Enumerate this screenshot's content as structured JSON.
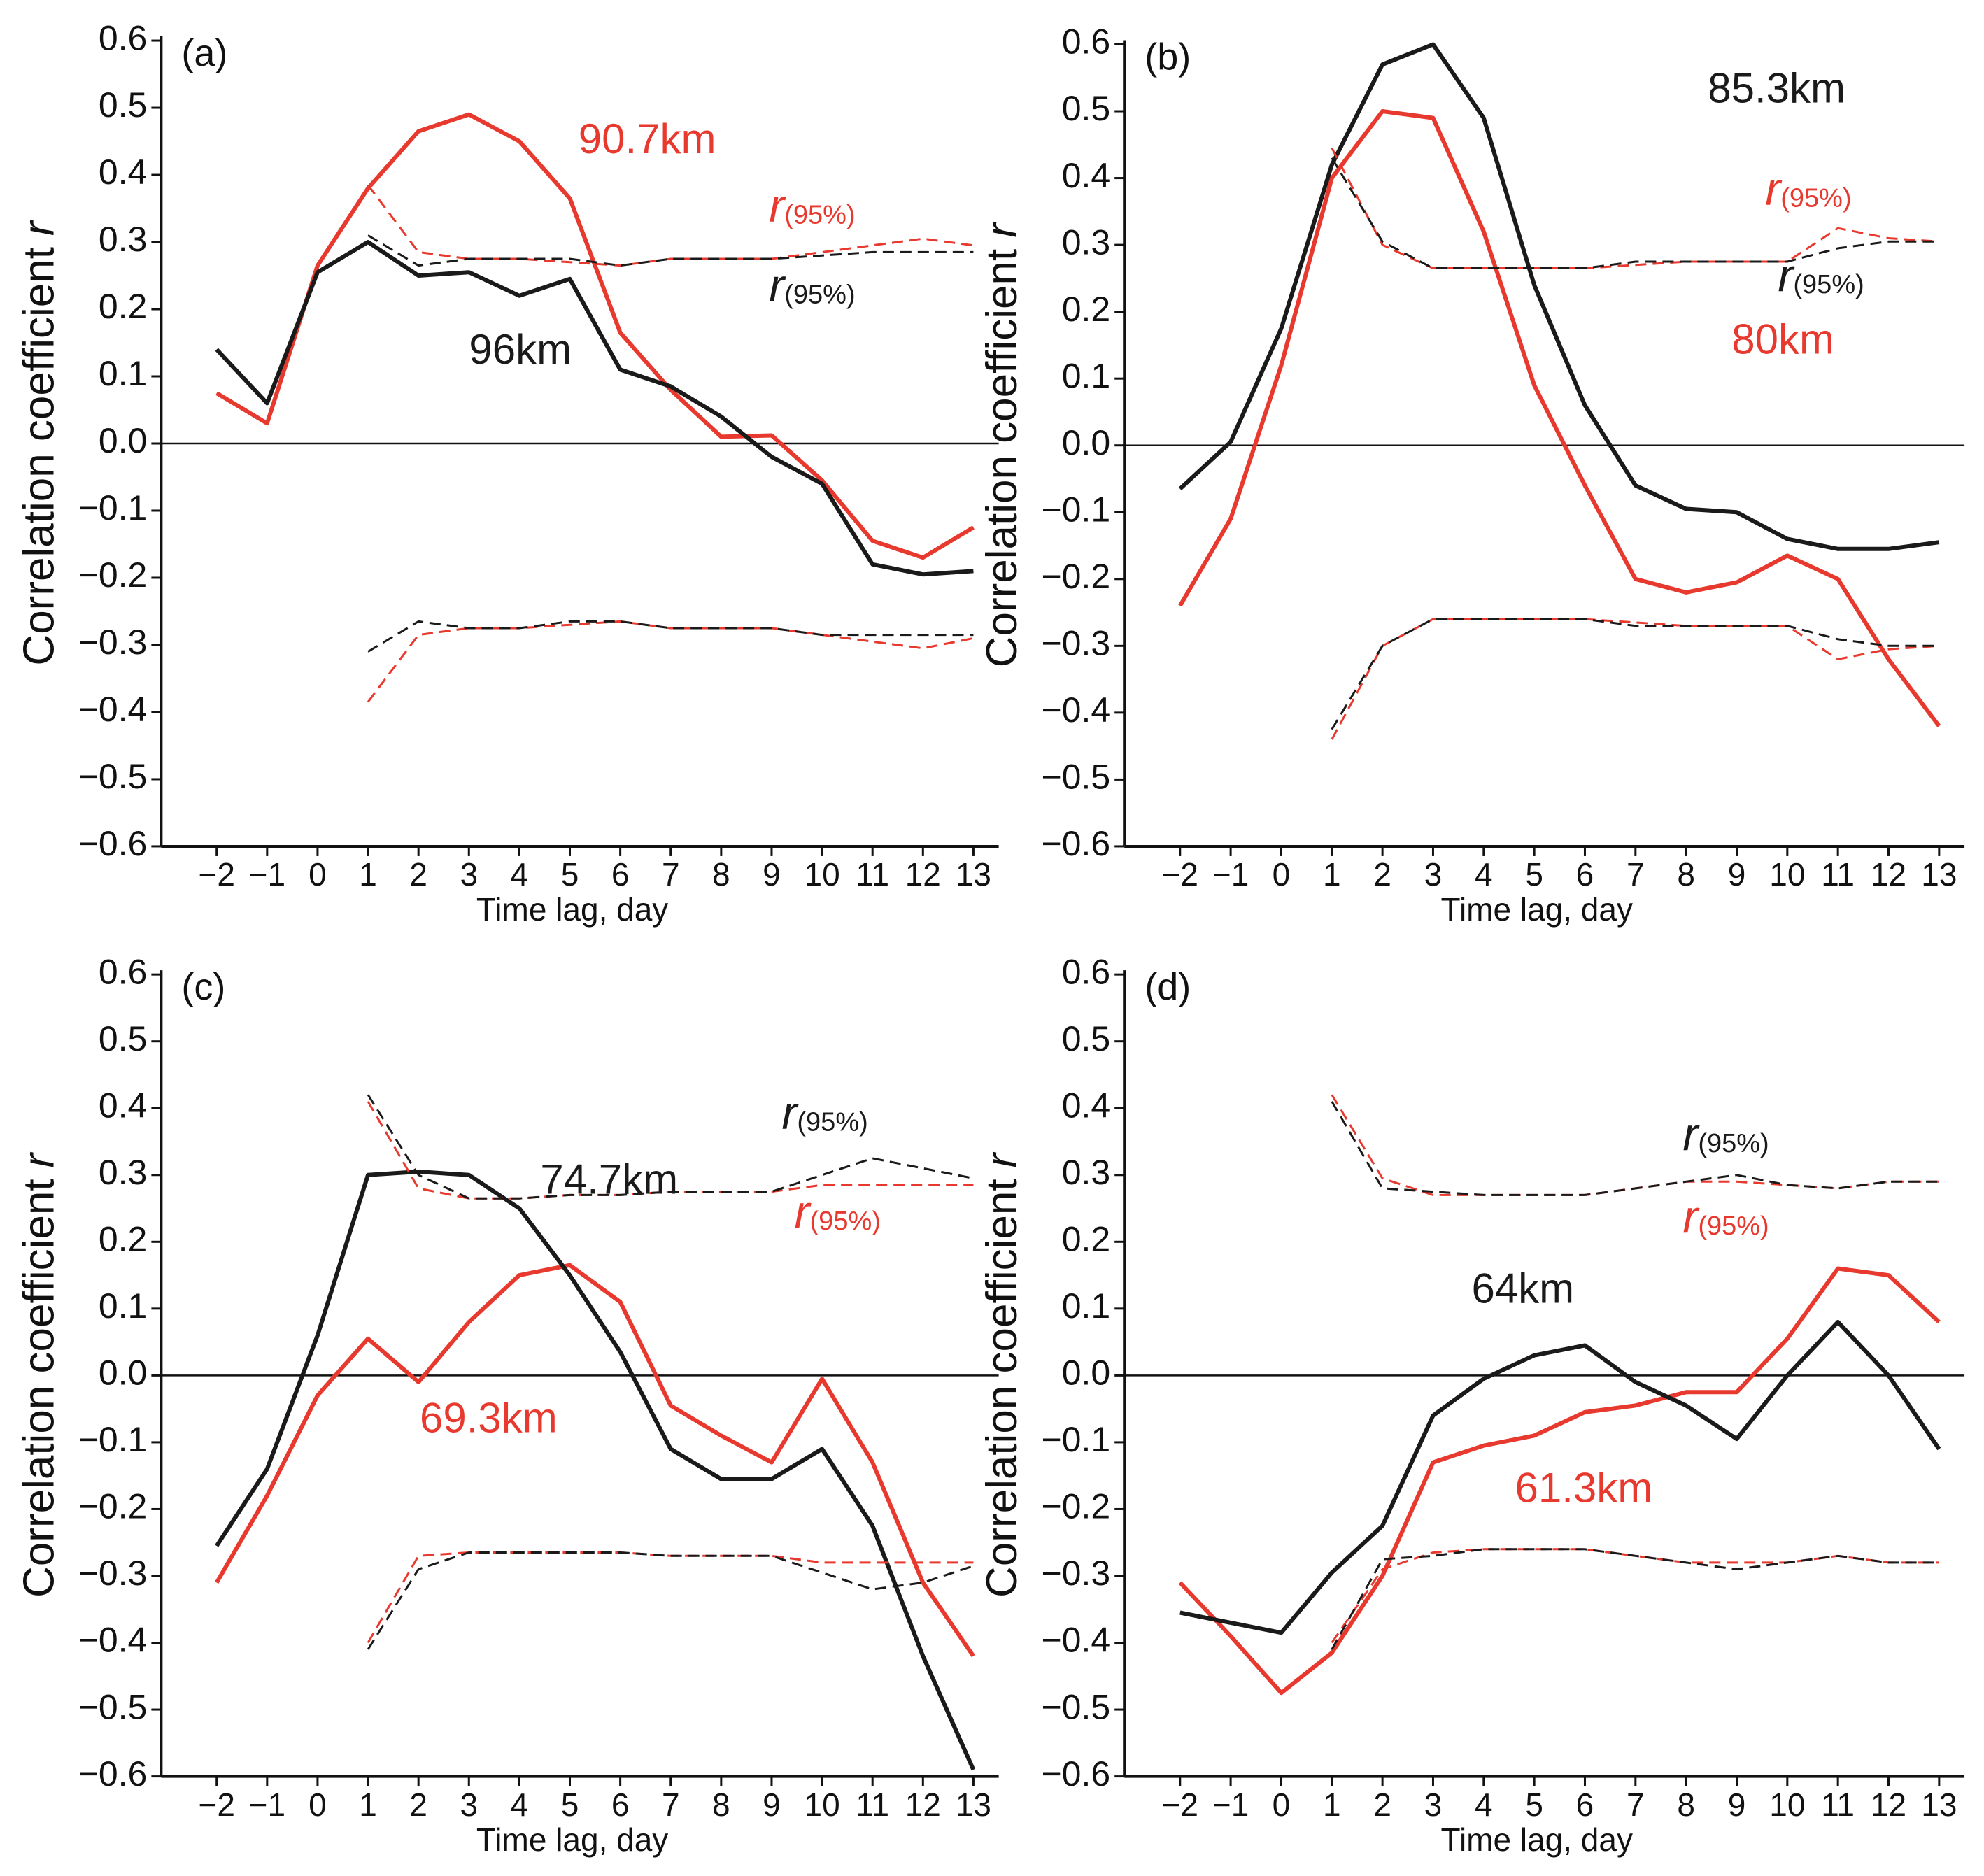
{
  "chart_data": [
    {
      "type": "line",
      "title": "(a)",
      "xlabel": "Time lag, day",
      "ylabel": "Correlation coefficient",
      "ylabel_var": "r",
      "x": [
        -2,
        -1,
        0,
        1,
        2,
        3,
        4,
        5,
        6,
        7,
        8,
        9,
        10,
        11,
        12,
        13
      ],
      "xlim": [
        -3.1,
        13.2
      ],
      "xticks": [
        {
          "value": -2,
          "label": "−2"
        },
        {
          "value": -1,
          "label": "−1"
        },
        0,
        1,
        2,
        3,
        4,
        5,
        6,
        7,
        8,
        9,
        10,
        11,
        12,
        13
      ],
      "ylim": [
        -0.6,
        0.6
      ],
      "yticks": [
        {
          "value": -0.6,
          "label": "−0.6"
        },
        {
          "value": -0.5,
          "label": "−0.5"
        },
        {
          "value": -0.4,
          "label": "−0.4"
        },
        {
          "value": -0.3,
          "label": "−0.3"
        },
        {
          "value": -0.2,
          "label": "−0.2"
        },
        {
          "value": -0.1,
          "label": "−0.1"
        },
        {
          "value": 0,
          "label": "0.0"
        },
        0.1,
        0.2,
        0.3,
        0.4,
        0.5,
        0.6
      ],
      "series": [
        {
          "name": "90.7km",
          "color": "#e8392f",
          "values": [
            0.075,
            0.03,
            0.265,
            0.38,
            0.465,
            0.49,
            0.45,
            0.365,
            0.165,
            0.08,
            0.01,
            0.012,
            -0.055,
            -0.145,
            -0.17,
            -0.125
          ]
        },
        {
          "name": "96km",
          "color": "#1a1a1a",
          "values": [
            0.14,
            0.06,
            0.255,
            0.3,
            0.25,
            0.255,
            0.22,
            0.245,
            0.11,
            0.085,
            0.04,
            -0.02,
            -0.06,
            -0.18,
            -0.195,
            -0.19
          ]
        },
        {
          "color": "#e8392f",
          "dashed": true,
          "values": [
            null,
            null,
            null,
            0.385,
            0.285,
            0.275,
            0.275,
            0.27,
            0.265,
            0.275,
            0.275,
            0.275,
            0.285,
            0.295,
            0.305,
            0.295
          ]
        },
        {
          "color": "#1a1a1a",
          "dashed": true,
          "values": [
            null,
            null,
            null,
            0.31,
            0.265,
            0.275,
            0.275,
            0.275,
            0.265,
            0.275,
            0.275,
            0.275,
            0.28,
            0.285,
            0.285,
            0.285
          ]
        },
        {
          "color": "#e8392f",
          "dashed": true,
          "values": [
            null,
            null,
            null,
            -0.385,
            -0.285,
            -0.275,
            -0.275,
            -0.27,
            -0.265,
            -0.275,
            -0.275,
            -0.275,
            -0.285,
            -0.295,
            -0.305,
            -0.29
          ]
        },
        {
          "color": "#1a1a1a",
          "dashed": true,
          "values": [
            null,
            null,
            null,
            -0.31,
            -0.265,
            -0.275,
            -0.275,
            -0.265,
            -0.265,
            -0.275,
            -0.275,
            -0.275,
            -0.285,
            -0.285,
            -0.285,
            -0.285
          ]
        }
      ],
      "annotations": [
        {
          "text": "r",
          "subscript": "(95%)",
          "color": "#e8392f"
        },
        {
          "text": "r",
          "subscript": "(95%)",
          "color": "#1a1a1a"
        }
      ]
    },
    {
      "type": "line",
      "title": "(b)",
      "xlabel": "Time lag, day",
      "ylabel": "Correlation coefficient",
      "ylabel_var": "r",
      "x": [
        -2,
        -1,
        0,
        1,
        2,
        3,
        4,
        5,
        6,
        7,
        8,
        9,
        10,
        11,
        12,
        13
      ],
      "xlim": [
        -3.1,
        13.2
      ],
      "xticks": [
        {
          "value": -2,
          "label": "−2"
        },
        {
          "value": -1,
          "label": "−1"
        },
        0,
        1,
        2,
        3,
        4,
        5,
        6,
        7,
        8,
        9,
        10,
        11,
        12,
        13
      ],
      "ylim": [
        -0.6,
        0.6
      ],
      "yticks": [
        {
          "value": -0.6,
          "label": "−0.6"
        },
        {
          "value": -0.5,
          "label": "−0.5"
        },
        {
          "value": -0.4,
          "label": "−0.4"
        },
        {
          "value": -0.3,
          "label": "−0.3"
        },
        {
          "value": -0.2,
          "label": "−0.2"
        },
        {
          "value": -0.1,
          "label": "−0.1"
        },
        {
          "value": 0,
          "label": "0.0"
        },
        0.1,
        0.2,
        0.3,
        0.4,
        0.5,
        0.6
      ],
      "series": [
        {
          "name": "80km",
          "color": "#e8392f",
          "values": [
            -0.24,
            -0.11,
            0.12,
            0.4,
            0.5,
            0.49,
            0.32,
            0.09,
            -0.06,
            -0.2,
            -0.22,
            -0.205,
            -0.165,
            -0.2,
            -0.32,
            -0.42
          ]
        },
        {
          "name": "85.3km",
          "color": "#1a1a1a",
          "values": [
            -0.065,
            0.005,
            0.175,
            0.42,
            0.57,
            0.6,
            0.49,
            0.24,
            0.06,
            -0.06,
            -0.095,
            -0.1,
            -0.14,
            -0.155,
            -0.155,
            -0.145
          ]
        },
        {
          "color": "#e8392f",
          "dashed": true,
          "values": [
            null,
            null,
            null,
            0.445,
            0.3,
            0.265,
            0.265,
            0.265,
            0.265,
            0.27,
            0.275,
            0.275,
            0.275,
            0.325,
            0.31,
            0.305
          ]
        },
        {
          "color": "#1a1a1a",
          "dashed": true,
          "values": [
            null,
            null,
            null,
            0.43,
            0.305,
            0.265,
            0.265,
            0.265,
            0.265,
            0.275,
            0.275,
            0.275,
            0.275,
            0.295,
            0.305,
            0.305
          ]
        },
        {
          "color": "#e8392f",
          "dashed": true,
          "values": [
            null,
            null,
            null,
            -0.44,
            -0.3,
            -0.26,
            -0.26,
            -0.26,
            -0.26,
            -0.265,
            -0.27,
            -0.27,
            -0.27,
            -0.32,
            -0.305,
            -0.3
          ]
        },
        {
          "color": "#1a1a1a",
          "dashed": true,
          "values": [
            null,
            null,
            null,
            -0.425,
            -0.3,
            -0.26,
            -0.26,
            -0.26,
            -0.26,
            -0.27,
            -0.27,
            -0.27,
            -0.27,
            -0.29,
            -0.3,
            -0.3
          ]
        }
      ],
      "annotations": [
        {
          "text": "r",
          "subscript": "(95%)",
          "color": "#e8392f"
        },
        {
          "text": "r",
          "subscript": "(95%)",
          "color": "#1a1a1a"
        }
      ]
    },
    {
      "type": "line",
      "title": "(c)",
      "xlabel": "Time lag, day",
      "ylabel": "Correlation coefficient",
      "ylabel_var": "r",
      "x": [
        -2,
        -1,
        0,
        1,
        2,
        3,
        4,
        5,
        6,
        7,
        8,
        9,
        10,
        11,
        12,
        13
      ],
      "xlim": [
        -3.1,
        13.2
      ],
      "xticks": [
        {
          "value": -2,
          "label": "−2"
        },
        {
          "value": -1,
          "label": "−1"
        },
        0,
        1,
        2,
        3,
        4,
        5,
        6,
        7,
        8,
        9,
        10,
        11,
        12,
        13
      ],
      "ylim": [
        -0.6,
        0.6
      ],
      "yticks": [
        {
          "value": -0.6,
          "label": "−0.6"
        },
        {
          "value": -0.5,
          "label": "−0.5"
        },
        {
          "value": -0.4,
          "label": "−0.4"
        },
        {
          "value": -0.3,
          "label": "−0.3"
        },
        {
          "value": -0.2,
          "label": "−0.2"
        },
        {
          "value": -0.1,
          "label": "−0.1"
        },
        {
          "value": 0,
          "label": "0.0"
        },
        0.1,
        0.2,
        0.3,
        0.4,
        0.5,
        0.6
      ],
      "series": [
        {
          "name": "69.3km",
          "color": "#e8392f",
          "values": [
            -0.31,
            -0.18,
            -0.03,
            0.055,
            -0.01,
            0.08,
            0.15,
            0.165,
            0.11,
            -0.045,
            -0.09,
            -0.13,
            -0.005,
            -0.13,
            -0.31,
            -0.42
          ]
        },
        {
          "name": "74.7km",
          "color": "#1a1a1a",
          "values": [
            -0.255,
            -0.14,
            0.06,
            0.3,
            0.305,
            0.3,
            0.25,
            0.15,
            0.035,
            -0.11,
            -0.155,
            -0.155,
            -0.11,
            -0.225,
            -0.42,
            -0.59
          ]
        },
        {
          "color": "#e8392f",
          "dashed": true,
          "values": [
            null,
            null,
            null,
            0.41,
            0.28,
            0.265,
            0.265,
            0.27,
            0.27,
            0.275,
            0.275,
            0.275,
            0.285,
            0.285,
            0.285,
            0.285
          ]
        },
        {
          "color": "#1a1a1a",
          "dashed": true,
          "values": [
            null,
            null,
            null,
            0.42,
            0.3,
            0.265,
            0.265,
            0.27,
            0.27,
            0.275,
            0.275,
            0.275,
            0.3,
            0.325,
            0.31,
            0.295
          ]
        },
        {
          "color": "#e8392f",
          "dashed": true,
          "values": [
            null,
            null,
            null,
            -0.4,
            -0.27,
            -0.265,
            -0.265,
            -0.265,
            -0.265,
            -0.27,
            -0.27,
            -0.27,
            -0.28,
            -0.28,
            -0.28,
            -0.28
          ]
        },
        {
          "color": "#1a1a1a",
          "dashed": true,
          "values": [
            null,
            null,
            null,
            -0.41,
            -0.29,
            -0.265,
            -0.265,
            -0.265,
            -0.265,
            -0.27,
            -0.27,
            -0.27,
            -0.295,
            -0.32,
            -0.31,
            -0.285
          ]
        }
      ],
      "annotations": [
        {
          "text": "r",
          "subscript": "(95%)",
          "color": "#e8392f"
        },
        {
          "text": "r",
          "subscript": "(95%)",
          "color": "#1a1a1a"
        }
      ]
    },
    {
      "type": "line",
      "title": "(d)",
      "xlabel": "Time lag, day",
      "ylabel": "Correlation coefficient",
      "ylabel_var": "r",
      "x": [
        -2,
        -1,
        0,
        1,
        2,
        3,
        4,
        5,
        6,
        7,
        8,
        9,
        10,
        11,
        12,
        13
      ],
      "xlim": [
        -3.1,
        13.2
      ],
      "xticks": [
        {
          "value": -2,
          "label": "−2"
        },
        {
          "value": -1,
          "label": "−1"
        },
        0,
        1,
        2,
        3,
        4,
        5,
        6,
        7,
        8,
        9,
        10,
        11,
        12,
        13
      ],
      "ylim": [
        -0.6,
        0.6
      ],
      "yticks": [
        {
          "value": -0.6,
          "label": "−0.6"
        },
        {
          "value": -0.5,
          "label": "−0.5"
        },
        {
          "value": -0.4,
          "label": "−0.4"
        },
        {
          "value": -0.3,
          "label": "−0.3"
        },
        {
          "value": -0.2,
          "label": "−0.2"
        },
        {
          "value": -0.1,
          "label": "−0.1"
        },
        {
          "value": 0,
          "label": "0.0"
        },
        0.1,
        0.2,
        0.3,
        0.4,
        0.5,
        0.6
      ],
      "series": [
        {
          "name": "61.3km",
          "color": "#e8392f",
          "values": [
            -0.31,
            -0.39,
            -0.475,
            -0.415,
            -0.3,
            -0.13,
            -0.105,
            -0.09,
            -0.055,
            -0.045,
            -0.025,
            -0.025,
            0.055,
            0.16,
            0.15,
            0.08
          ]
        },
        {
          "name": "64km",
          "color": "#1a1a1a",
          "values": [
            -0.355,
            -0.37,
            -0.385,
            -0.295,
            -0.225,
            -0.06,
            -0.005,
            0.03,
            0.045,
            -0.01,
            -0.045,
            -0.095,
            0.0,
            0.08,
            0.0,
            -0.11
          ]
        },
        {
          "color": "#e8392f",
          "dashed": true,
          "values": [
            null,
            null,
            null,
            0.42,
            0.295,
            0.27,
            0.27,
            0.27,
            0.27,
            0.28,
            0.29,
            0.29,
            0.285,
            0.28,
            0.29,
            0.29
          ]
        },
        {
          "color": "#1a1a1a",
          "dashed": true,
          "values": [
            null,
            null,
            null,
            0.41,
            0.28,
            0.275,
            0.27,
            0.27,
            0.27,
            0.28,
            0.29,
            0.3,
            0.285,
            0.28,
            0.29,
            0.29
          ]
        },
        {
          "color": "#e8392f",
          "dashed": true,
          "values": [
            null,
            null,
            null,
            -0.4,
            -0.29,
            -0.265,
            -0.26,
            -0.26,
            -0.26,
            -0.27,
            -0.28,
            -0.28,
            -0.28,
            -0.27,
            -0.28,
            -0.28
          ]
        },
        {
          "color": "#1a1a1a",
          "dashed": true,
          "values": [
            null,
            null,
            null,
            -0.41,
            -0.275,
            -0.27,
            -0.26,
            -0.26,
            -0.26,
            -0.27,
            -0.28,
            -0.29,
            -0.28,
            -0.27,
            -0.28,
            -0.28
          ]
        }
      ],
      "annotations": [
        {
          "text": "r",
          "subscript": "(95%)",
          "color": "#e8392f"
        },
        {
          "text": "r",
          "subscript": "(95%)",
          "color": "#1a1a1a"
        }
      ]
    }
  ]
}
